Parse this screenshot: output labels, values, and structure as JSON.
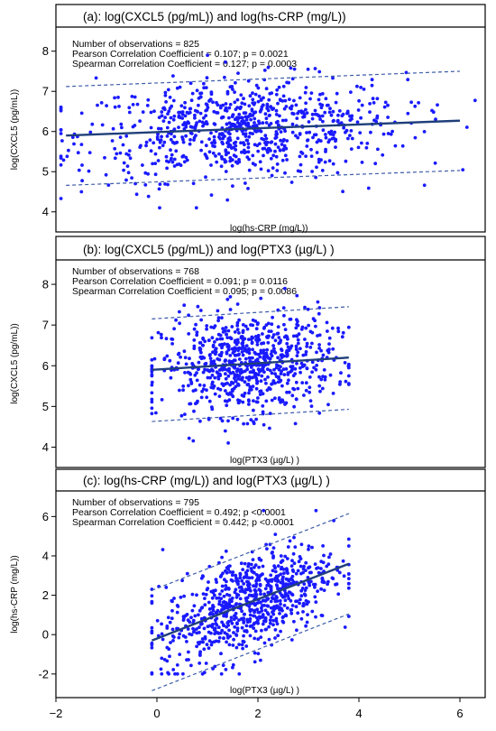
{
  "colors": {
    "points": "#1a1aff",
    "fit_line": "#1f3f7a",
    "band": "#3b5ba8",
    "frame": "#000000"
  },
  "shared_x_axis": {
    "ticks": [
      -2,
      0,
      2,
      4,
      6
    ],
    "xlim": [
      -2,
      6.5
    ]
  },
  "chart_data": [
    {
      "type": "scatter",
      "title": "(a): log(CXCL5 (pg/mL)) and log(hs-CRP (mg/L))",
      "xlabel": "log(hs-CRP (mg/L))",
      "ylabel": "log(CXCL5 (pg/mL))",
      "xlim": [
        -2,
        6.5
      ],
      "ylim": [
        3.5,
        8.6
      ],
      "yticks": [
        4,
        5,
        6,
        7,
        8
      ],
      "stats": [
        "Number of observations = 825",
        "Pearson Correlation Coefficient = 0.107; p = 0.0021",
        "Spearman Correlation Coefficient = 0.127; p = 0.0003"
      ],
      "n": 825,
      "fit_line": {
        "x": [
          -1.8,
          6.0
        ],
        "y": [
          5.9,
          6.27
        ]
      },
      "prediction_band_upper": {
        "x": [
          -1.8,
          6.0
        ],
        "y": [
          7.12,
          7.5
        ]
      },
      "prediction_band_lower": {
        "x": [
          -1.8,
          6.0
        ],
        "y": [
          4.66,
          5.03
        ]
      },
      "point_cloud": {
        "x_mean": 1.7,
        "x_sd": 1.6,
        "x_range": [
          -1.9,
          6.3
        ],
        "y_mean": 6.05,
        "y_sd": 0.62,
        "y_range": [
          4.1,
          7.9
        ]
      },
      "grid": false
    },
    {
      "type": "scatter",
      "title": "(b): log(CXCL5 (pg/mL)) and log(PTX3 (µg/L)  )",
      "xlabel": "log(PTX3 (µg/L)  )",
      "ylabel": "log(CXCL5 (pg/mL))",
      "xlim": [
        -2,
        6.5
      ],
      "ylim": [
        3.5,
        8.6
      ],
      "yticks": [
        4,
        5,
        6,
        7,
        8
      ],
      "stats": [
        "Number of observations = 768",
        "Pearson Correlation Coefficient = 0.091; p = 0.0116",
        "Spearman Correlation Coefficient = 0.095; p = 0.0086"
      ],
      "n": 768,
      "fit_line": {
        "x": [
          -0.1,
          3.8
        ],
        "y": [
          5.9,
          6.2
        ]
      },
      "prediction_band_upper": {
        "x": [
          -0.1,
          3.8
        ],
        "y": [
          7.15,
          7.45
        ]
      },
      "prediction_band_lower": {
        "x": [
          -0.1,
          3.8
        ],
        "y": [
          4.63,
          4.93
        ]
      },
      "point_cloud": {
        "x_mean": 1.8,
        "x_sd": 0.85,
        "x_range": [
          -0.1,
          3.8
        ],
        "y_mean": 6.05,
        "y_sd": 0.62,
        "y_range": [
          4.1,
          7.9
        ]
      },
      "grid": false
    },
    {
      "type": "scatter",
      "title": "(c): log(hs-CRP (mg/L)) and log(PTX3 (µg/L)  )",
      "xlabel": "log(PTX3 (µg/L)  )",
      "ylabel": "log(hs-CRP (mg/L))",
      "xlim": [
        -2,
        6.5
      ],
      "ylim": [
        -3.2,
        7.3
      ],
      "yticks": [
        -2,
        0,
        2,
        4,
        6
      ],
      "stats": [
        "Number of observations = 795",
        "Pearson Correlation Coefficient = 0.492; p <0.0001",
        "Spearman Correlation Coefficient = 0.442; p <0.0001"
      ],
      "n": 795,
      "fit_line": {
        "x": [
          -0.1,
          3.8
        ],
        "y": [
          -0.3,
          3.6
        ]
      },
      "prediction_band_upper": {
        "x": [
          -0.1,
          3.8
        ],
        "y": [
          2.25,
          6.15
        ]
      },
      "prediction_band_lower": {
        "x": [
          -0.1,
          3.8
        ],
        "y": [
          -2.85,
          1.05
        ]
      },
      "point_cloud": {
        "x_mean": 1.8,
        "x_sd": 0.85,
        "x_range": [
          -0.1,
          3.8
        ],
        "y_mean": 1.45,
        "y_sd": 1.5,
        "y_range": [
          -2.0,
          6.3
        ]
      },
      "grid": false
    }
  ]
}
